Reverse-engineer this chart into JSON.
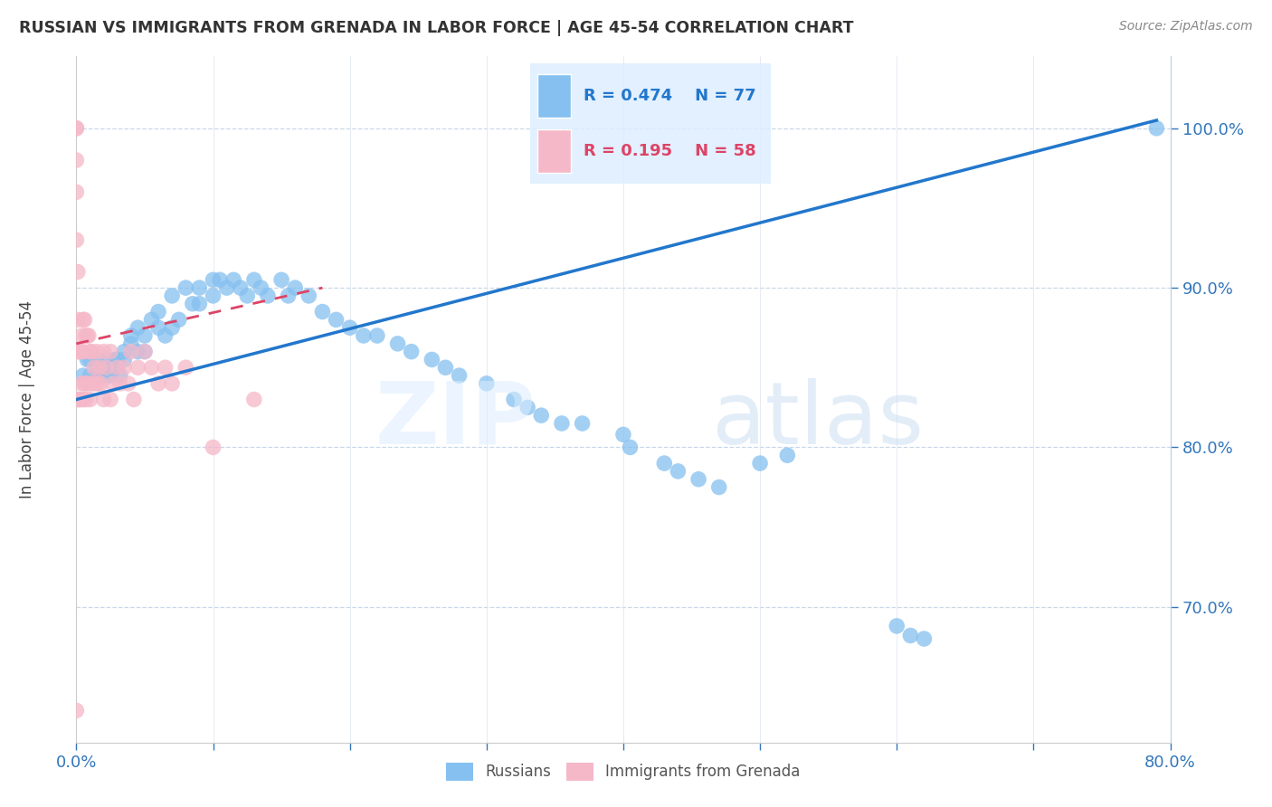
{
  "title": "RUSSIAN VS IMMIGRANTS FROM GRENADA IN LABOR FORCE | AGE 45-54 CORRELATION CHART",
  "source": "Source: ZipAtlas.com",
  "ylabel": "In Labor Force | Age 45-54",
  "xlim": [
    0.0,
    0.8
  ],
  "ylim": [
    0.615,
    1.045
  ],
  "xticks": [
    0.0,
    0.1,
    0.2,
    0.3,
    0.4,
    0.5,
    0.6,
    0.7,
    0.8
  ],
  "xticklabels": [
    "0.0%",
    "",
    "",
    "",
    "",
    "",
    "",
    "",
    "80.0%"
  ],
  "ytick_positions": [
    0.7,
    0.8,
    0.9,
    1.0
  ],
  "ytick_labels": [
    "70.0%",
    "80.0%",
    "90.0%",
    "100.0%"
  ],
  "legend_blue_label": "Russians",
  "legend_pink_label": "Immigrants from Grenada",
  "R_blue": 0.474,
  "N_blue": 77,
  "R_pink": 0.195,
  "N_pink": 58,
  "blue_color": "#85c0f0",
  "pink_color": "#f5b8c8",
  "blue_line_color": "#2277cc",
  "pink_line_color": "#dd4466",
  "watermark_zip": "ZIP",
  "watermark_atlas": "atlas",
  "blue_x": [
    0.005,
    0.008,
    0.01,
    0.01,
    0.015,
    0.015,
    0.018,
    0.02,
    0.02,
    0.022,
    0.025,
    0.025,
    0.028,
    0.03,
    0.03,
    0.032,
    0.035,
    0.035,
    0.04,
    0.04,
    0.045,
    0.045,
    0.05,
    0.05,
    0.055,
    0.06,
    0.06,
    0.065,
    0.07,
    0.07,
    0.075,
    0.08,
    0.085,
    0.09,
    0.09,
    0.1,
    0.1,
    0.105,
    0.11,
    0.115,
    0.12,
    0.125,
    0.13,
    0.135,
    0.14,
    0.15,
    0.155,
    0.16,
    0.17,
    0.18,
    0.19,
    0.2,
    0.21,
    0.22,
    0.235,
    0.245,
    0.26,
    0.27,
    0.28,
    0.3,
    0.32,
    0.33,
    0.34,
    0.355,
    0.37,
    0.4,
    0.405,
    0.43,
    0.44,
    0.455,
    0.47,
    0.5,
    0.52,
    0.6,
    0.61,
    0.62,
    0.79
  ],
  "blue_y": [
    0.845,
    0.855,
    0.855,
    0.845,
    0.855,
    0.845,
    0.85,
    0.85,
    0.845,
    0.855,
    0.85,
    0.845,
    0.855,
    0.855,
    0.85,
    0.845,
    0.86,
    0.855,
    0.87,
    0.865,
    0.875,
    0.86,
    0.87,
    0.86,
    0.88,
    0.885,
    0.875,
    0.87,
    0.895,
    0.875,
    0.88,
    0.9,
    0.89,
    0.9,
    0.89,
    0.905,
    0.895,
    0.905,
    0.9,
    0.905,
    0.9,
    0.895,
    0.905,
    0.9,
    0.895,
    0.905,
    0.895,
    0.9,
    0.895,
    0.885,
    0.88,
    0.875,
    0.87,
    0.87,
    0.865,
    0.86,
    0.855,
    0.85,
    0.845,
    0.84,
    0.83,
    0.825,
    0.82,
    0.815,
    0.815,
    0.808,
    0.8,
    0.79,
    0.785,
    0.78,
    0.775,
    0.79,
    0.795,
    0.688,
    0.682,
    0.68,
    1.0
  ],
  "pink_x": [
    0.0,
    0.0,
    0.0,
    0.0,
    0.0,
    0.001,
    0.001,
    0.001,
    0.001,
    0.002,
    0.002,
    0.003,
    0.003,
    0.004,
    0.004,
    0.005,
    0.005,
    0.005,
    0.006,
    0.006,
    0.007,
    0.007,
    0.008,
    0.008,
    0.009,
    0.009,
    0.01,
    0.01,
    0.011,
    0.012,
    0.013,
    0.014,
    0.015,
    0.016,
    0.017,
    0.018,
    0.02,
    0.02,
    0.022,
    0.025,
    0.025,
    0.027,
    0.03,
    0.032,
    0.035,
    0.038,
    0.04,
    0.042,
    0.045,
    0.05,
    0.055,
    0.06,
    0.065,
    0.07,
    0.08,
    0.1,
    0.13,
    0.0
  ],
  "pink_y": [
    1.0,
    1.0,
    0.98,
    0.96,
    0.93,
    0.91,
    0.88,
    0.86,
    0.83,
    0.86,
    0.83,
    0.86,
    0.83,
    0.87,
    0.84,
    0.88,
    0.86,
    0.83,
    0.88,
    0.84,
    0.87,
    0.83,
    0.87,
    0.84,
    0.87,
    0.84,
    0.86,
    0.83,
    0.86,
    0.84,
    0.85,
    0.84,
    0.86,
    0.84,
    0.85,
    0.84,
    0.86,
    0.83,
    0.85,
    0.86,
    0.83,
    0.84,
    0.85,
    0.84,
    0.85,
    0.84,
    0.86,
    0.83,
    0.85,
    0.86,
    0.85,
    0.84,
    0.85,
    0.84,
    0.85,
    0.8,
    0.83,
    0.635
  ],
  "blue_line_x0": 0.0,
  "blue_line_y0": 0.83,
  "blue_line_x1": 0.79,
  "blue_line_y1": 1.005,
  "pink_line_x0": 0.0,
  "pink_line_y0": 0.865,
  "pink_line_x1": 0.18,
  "pink_line_y1": 0.9
}
